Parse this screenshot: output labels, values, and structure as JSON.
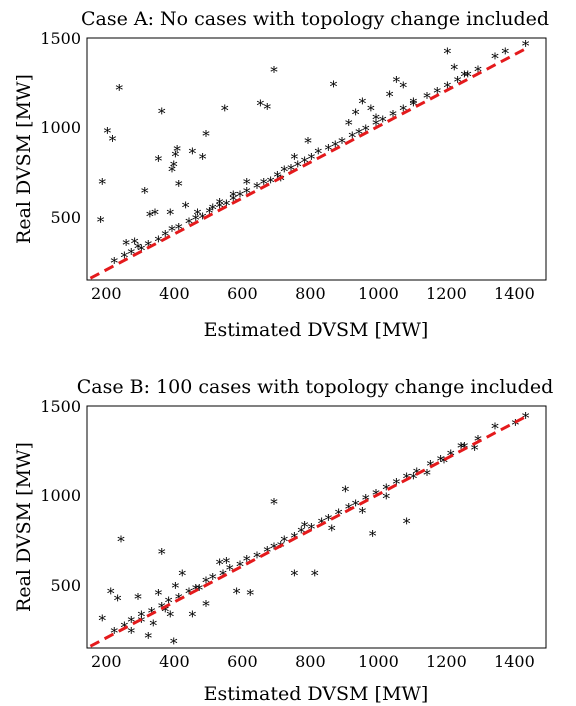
{
  "chart_data": [
    {
      "type": "scatter",
      "title": "Case A: No cases with topology change included",
      "xlabel": "Estimated DVSM [MW]",
      "ylabel": "Real DVSM [MW]",
      "xlim": [
        150,
        1500
      ],
      "ylim": [
        150,
        1500
      ],
      "xticks": [
        "200",
        "400",
        "600",
        "800",
        "1000",
        "1200",
        "1400"
      ],
      "yticks": [
        "500",
        "1000",
        "1500"
      ],
      "marker": "*",
      "reference_line": {
        "style": "dashed",
        "color": "#e41a1c",
        "x": [
          160,
          1450
        ],
        "y": [
          160,
          1450
        ]
      },
      "points": [
        [
          190,
          480
        ],
        [
          195,
          690
        ],
        [
          210,
          975
        ],
        [
          225,
          930
        ],
        [
          245,
          1215
        ],
        [
          265,
          350
        ],
        [
          290,
          360
        ],
        [
          300,
          330
        ],
        [
          320,
          640
        ],
        [
          335,
          510
        ],
        [
          350,
          520
        ],
        [
          360,
          820
        ],
        [
          370,
          1085
        ],
        [
          395,
          520
        ],
        [
          400,
          760
        ],
        [
          405,
          790
        ],
        [
          410,
          845
        ],
        [
          415,
          875
        ],
        [
          420,
          680
        ],
        [
          440,
          560
        ],
        [
          460,
          860
        ],
        [
          475,
          520
        ],
        [
          490,
          830
        ],
        [
          500,
          960
        ],
        [
          520,
          550
        ],
        [
          540,
          580
        ],
        [
          555,
          1100
        ],
        [
          580,
          620
        ],
        [
          620,
          690
        ],
        [
          660,
          1130
        ],
        [
          680,
          1110
        ],
        [
          700,
          1315
        ],
        [
          720,
          710
        ],
        [
          760,
          830
        ],
        [
          800,
          920
        ],
        [
          875,
          1235
        ],
        [
          920,
          1020
        ],
        [
          940,
          1080
        ],
        [
          960,
          1140
        ],
        [
          985,
          1100
        ],
        [
          1000,
          1050
        ],
        [
          1040,
          1180
        ],
        [
          1060,
          1260
        ],
        [
          1080,
          1230
        ],
        [
          1110,
          1140
        ],
        [
          1210,
          1420
        ],
        [
          1230,
          1330
        ],
        [
          1260,
          1290
        ],
        [
          1350,
          1390
        ],
        [
          1380,
          1420
        ],
        [
          1440,
          1460
        ],
        [
          230,
          250
        ],
        [
          260,
          280
        ],
        [
          280,
          300
        ],
        [
          310,
          320
        ],
        [
          330,
          345
        ],
        [
          360,
          370
        ],
        [
          380,
          400
        ],
        [
          400,
          430
        ],
        [
          420,
          440
        ],
        [
          450,
          470
        ],
        [
          470,
          490
        ],
        [
          490,
          500
        ],
        [
          510,
          530
        ],
        [
          540,
          560
        ],
        [
          560,
          570
        ],
        [
          580,
          600
        ],
        [
          600,
          620
        ],
        [
          620,
          640
        ],
        [
          650,
          670
        ],
        [
          670,
          690
        ],
        [
          690,
          700
        ],
        [
          710,
          730
        ],
        [
          730,
          760
        ],
        [
          750,
          770
        ],
        [
          770,
          790
        ],
        [
          790,
          810
        ],
        [
          810,
          830
        ],
        [
          830,
          860
        ],
        [
          860,
          880
        ],
        [
          880,
          900
        ],
        [
          900,
          920
        ],
        [
          930,
          950
        ],
        [
          950,
          970
        ],
        [
          970,
          990
        ],
        [
          1000,
          1020
        ],
        [
          1020,
          1040
        ],
        [
          1050,
          1070
        ],
        [
          1080,
          1100
        ],
        [
          1110,
          1130
        ],
        [
          1150,
          1170
        ],
        [
          1180,
          1200
        ],
        [
          1210,
          1230
        ],
        [
          1240,
          1260
        ],
        [
          1270,
          1290
        ],
        [
          1300,
          1320
        ]
      ]
    },
    {
      "type": "scatter",
      "title": "Case B: 100 cases with topology change included",
      "xlabel": "Estimated DVSM [MW]",
      "ylabel": "Real DVSM [MW]",
      "xlim": [
        150,
        1500
      ],
      "ylim": [
        150,
        1500
      ],
      "xticks": [
        "200",
        "400",
        "600",
        "800",
        "1000",
        "1200",
        "1400"
      ],
      "yticks": [
        "500",
        "1000",
        "1500"
      ],
      "marker": "*",
      "reference_line": {
        "style": "dashed",
        "color": "#e41a1c",
        "x": [
          160,
          1450
        ],
        "y": [
          160,
          1450
        ]
      },
      "points": [
        [
          195,
          310
        ],
        [
          220,
          460
        ],
        [
          240,
          420
        ],
        [
          250,
          750
        ],
        [
          280,
          240
        ],
        [
          300,
          430
        ],
        [
          310,
          300
        ],
        [
          330,
          210
        ],
        [
          345,
          280
        ],
        [
          360,
          450
        ],
        [
          370,
          680
        ],
        [
          380,
          360
        ],
        [
          395,
          330
        ],
        [
          405,
          180
        ],
        [
          410,
          490
        ],
        [
          430,
          560
        ],
        [
          460,
          330
        ],
        [
          480,
          480
        ],
        [
          500,
          390
        ],
        [
          540,
          620
        ],
        [
          560,
          630
        ],
        [
          590,
          460
        ],
        [
          630,
          450
        ],
        [
          700,
          960
        ],
        [
          720,
          720
        ],
        [
          760,
          560
        ],
        [
          790,
          830
        ],
        [
          820,
          560
        ],
        [
          870,
          810
        ],
        [
          910,
          1030
        ],
        [
          960,
          910
        ],
        [
          990,
          780
        ],
        [
          1030,
          990
        ],
        [
          1090,
          850
        ],
        [
          1110,
          1100
        ],
        [
          1150,
          1120
        ],
        [
          1200,
          1190
        ],
        [
          1250,
          1270
        ],
        [
          1290,
          1260
        ],
        [
          1350,
          1380
        ],
        [
          1410,
          1400
        ],
        [
          1440,
          1440
        ],
        [
          230,
          240
        ],
        [
          260,
          270
        ],
        [
          280,
          300
        ],
        [
          310,
          330
        ],
        [
          340,
          350
        ],
        [
          370,
          380
        ],
        [
          390,
          410
        ],
        [
          420,
          430
        ],
        [
          450,
          460
        ],
        [
          470,
          480
        ],
        [
          500,
          520
        ],
        [
          520,
          540
        ],
        [
          550,
          560
        ],
        [
          570,
          590
        ],
        [
          600,
          610
        ],
        [
          620,
          640
        ],
        [
          650,
          660
        ],
        [
          680,
          690
        ],
        [
          700,
          710
        ],
        [
          730,
          750
        ],
        [
          760,
          770
        ],
        [
          780,
          800
        ],
        [
          810,
          820
        ],
        [
          840,
          850
        ],
        [
          860,
          870
        ],
        [
          890,
          900
        ],
        [
          920,
          930
        ],
        [
          940,
          950
        ],
        [
          970,
          980
        ],
        [
          1000,
          1010
        ],
        [
          1030,
          1040
        ],
        [
          1060,
          1070
        ],
        [
          1090,
          1100
        ],
        [
          1120,
          1130
        ],
        [
          1160,
          1170
        ],
        [
          1190,
          1200
        ],
        [
          1220,
          1230
        ],
        [
          1260,
          1270
        ],
        [
          1300,
          1310
        ]
      ]
    }
  ]
}
